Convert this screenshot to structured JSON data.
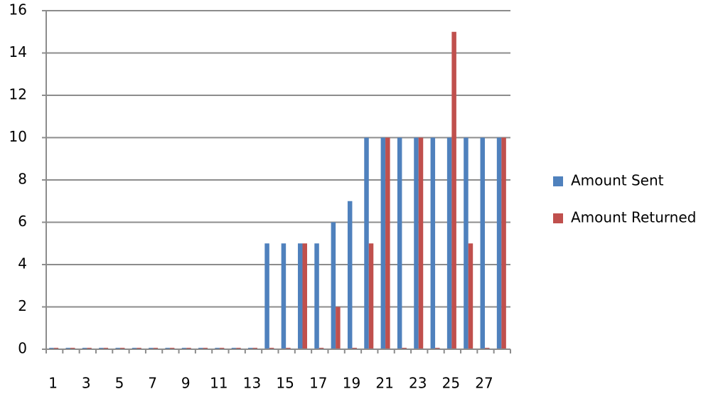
{
  "chart_data": {
    "type": "bar",
    "categories": [
      "1",
      null,
      "3",
      null,
      "5",
      null,
      "7",
      null,
      "9",
      null,
      "11",
      null,
      "13",
      null,
      "15",
      null,
      "17",
      null,
      "19",
      null,
      "21",
      null,
      "23",
      null,
      "25",
      null,
      "27",
      null
    ],
    "series": [
      {
        "name": "Amount Sent",
        "color": "#4f81bd",
        "values": [
          0,
          0,
          0,
          0,
          0,
          0,
          0,
          0,
          0,
          0,
          0,
          0,
          0,
          5,
          5,
          5,
          5,
          6,
          7,
          10,
          10,
          10,
          10,
          10,
          10,
          10,
          10,
          10
        ]
      },
      {
        "name": "Amount Returned",
        "color": "#c0504d",
        "values": [
          0,
          0,
          0,
          0,
          0,
          0,
          0,
          0,
          0,
          0,
          0,
          0,
          0,
          0,
          0,
          5,
          0,
          2,
          0,
          5,
          10,
          0,
          10,
          0,
          15,
          5,
          0,
          10
        ]
      }
    ],
    "ylim": [
      0,
      16
    ],
    "yticks": [
      0,
      2,
      4,
      6,
      8,
      10,
      12,
      14,
      16
    ],
    "grid": true,
    "legend": "right"
  }
}
